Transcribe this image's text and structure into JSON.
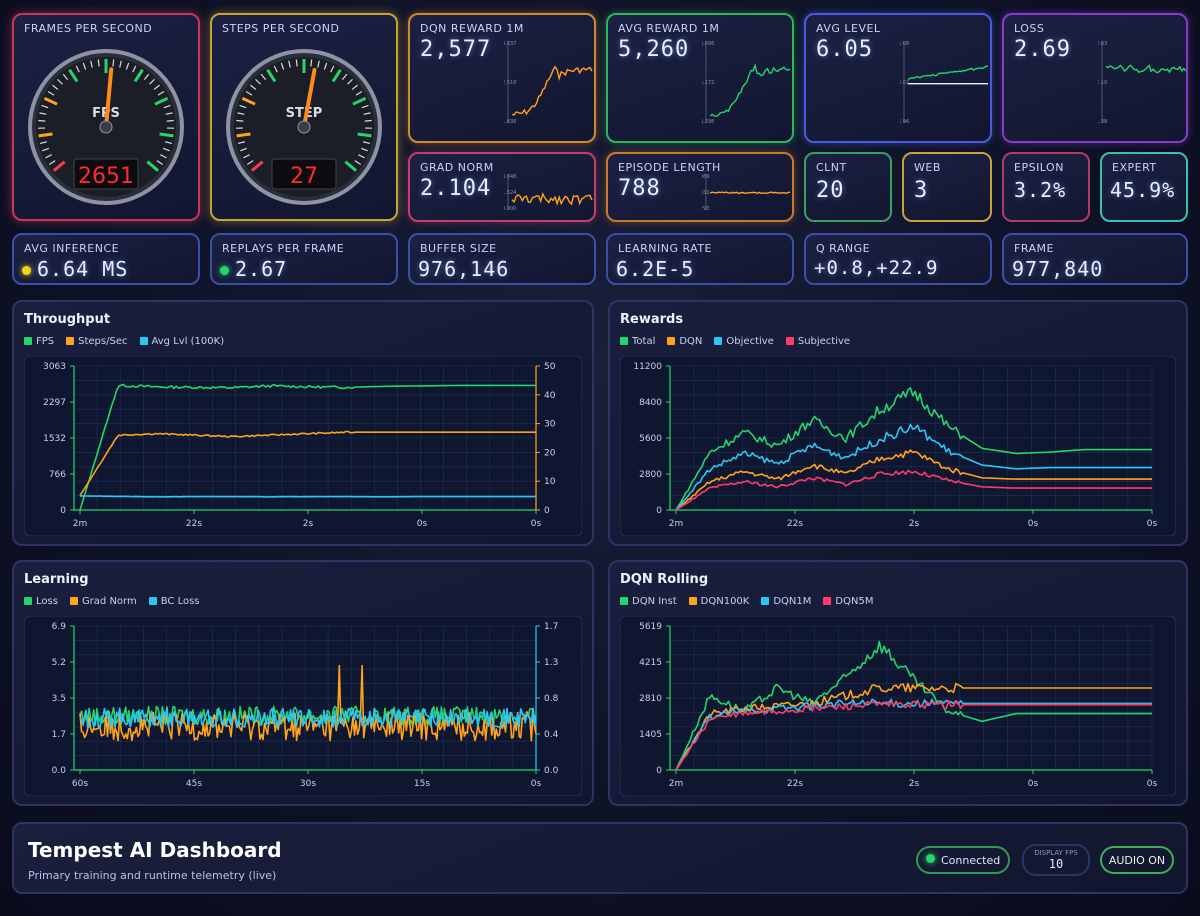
{
  "colors": {
    "green": "#22d66a",
    "orange": "#ffa31a",
    "cyan": "#2cc7f0",
    "red": "#ff3b6a",
    "yellow": "#f5d21a"
  },
  "gauges": [
    {
      "label": "FRAMES PER SECOND",
      "dial_label": "FPS",
      "readout": "2651",
      "needle_fraction": 0.52
    },
    {
      "label": "STEPS PER SECOND",
      "dial_label": "STEP",
      "readout": "27",
      "needle_fraction": 0.54
    }
  ],
  "sparks": [
    {
      "label": "DQN REWARD 1M",
      "value": "2,577",
      "ticks": [
        "3,037",
        "2,518",
        "1,838"
      ],
      "color": "#ffa31a"
    },
    {
      "label": "AVG REWARD 1M",
      "value": "5,260",
      "ticks": [
        "6,096",
        "5,172",
        "4,298"
      ],
      "color": "#22d66a"
    },
    {
      "label": "AVG LEVEL",
      "value": "6.05",
      "ticks": [
        "6.08",
        "6.02",
        "5.96"
      ],
      "color": "#22d66a"
    },
    {
      "label": "LOSS",
      "value": "2.69",
      "ticks": [
        "2.83",
        "2.10",
        "1.38"
      ],
      "color": "#22d66a"
    },
    {
      "label": "GRAD NORM",
      "value": "2.104",
      "ticks": [
        "3.048",
        "1.524",
        "0.000"
      ],
      "color": "#ffa31a"
    },
    {
      "label": "EPISODE LENGTH",
      "value": "788",
      "ticks": [
        "869",
        "831",
        "793"
      ],
      "color": "#ffa31a"
    }
  ],
  "small": [
    {
      "label": "CLNT",
      "value": "20"
    },
    {
      "label": "WEB",
      "value": "3"
    },
    {
      "label": "EPSILON",
      "value": "3.2%"
    },
    {
      "label": "EXPERT",
      "value": "45.9%"
    }
  ],
  "row3": [
    {
      "label": "AVG INFERENCE",
      "value": "6.64 MS",
      "dot": "#f5d21a"
    },
    {
      "label": "REPLAYS PER FRAME",
      "value": "2.67",
      "dot": "#22d66a"
    },
    {
      "label": "BUFFER SIZE",
      "value": "976,146"
    },
    {
      "label": "LEARNING RATE",
      "value": "6.2E-5"
    },
    {
      "label": "Q RANGE",
      "value": "+0.8,+22.9"
    },
    {
      "label": "FRAME",
      "value": "977,840"
    }
  ],
  "chart_data": [
    {
      "title": "Throughput",
      "type": "line",
      "legend": [
        "FPS",
        "Steps/Sec",
        "Avg Lvl (100K)"
      ],
      "y_left_ticks": [
        "3063",
        "2297",
        "1532",
        "766",
        "0"
      ],
      "y_right_ticks": [
        "50",
        "40",
        "30",
        "20",
        "10",
        "0"
      ],
      "x_ticks": [
        "2m",
        "22s",
        "2s",
        "0s",
        "0s"
      ],
      "series": [
        {
          "name": "FPS",
          "axis": "left",
          "values": [
            0,
            2650,
            2620,
            2610,
            2600,
            2640,
            2620,
            2610,
            2630,
            2640,
            2650,
            2650,
            2651
          ]
        },
        {
          "name": "Steps/Sec",
          "axis": "right",
          "values": [
            5,
            26,
            26.5,
            26,
            25.5,
            26,
            26.5,
            27,
            27,
            27,
            27,
            27,
            27
          ]
        },
        {
          "name": "Avg Lvl (100K)",
          "axis": "left",
          "values": [
            300,
            290,
            280,
            285,
            285,
            280,
            285,
            285,
            280,
            285,
            285,
            285,
            285
          ]
        }
      ]
    },
    {
      "title": "Rewards",
      "type": "line",
      "legend": [
        "Total",
        "DQN",
        "Objective",
        "Subjective"
      ],
      "y_ticks": [
        "11200",
        "8400",
        "5600",
        "2800",
        "0"
      ],
      "x_ticks": [
        "2m",
        "22s",
        "2s",
        "0s",
        "0s"
      ],
      "series": [
        {
          "name": "Total",
          "values": [
            0,
            4500,
            6000,
            5000,
            7000,
            5600,
            7800,
            9200,
            6500,
            4800,
            4400,
            4500,
            4700,
            4700,
            4700
          ]
        },
        {
          "name": "DQN",
          "values": [
            0,
            2200,
            3000,
            2400,
            3500,
            2800,
            4000,
            4500,
            3200,
            2500,
            2400,
            2400,
            2400,
            2400,
            2400
          ]
        },
        {
          "name": "Objective",
          "values": [
            0,
            3200,
            4400,
            3600,
            5000,
            4100,
            5500,
            6500,
            4600,
            3500,
            3200,
            3300,
            3300,
            3300,
            3300
          ]
        },
        {
          "name": "Subjective",
          "values": [
            0,
            1700,
            2200,
            1800,
            2500,
            2000,
            2800,
            3000,
            2300,
            1800,
            1700,
            1700,
            1700,
            1700,
            1700
          ]
        }
      ]
    },
    {
      "title": "Learning",
      "type": "line",
      "legend": [
        "Loss",
        "Grad Norm",
        "BC Loss"
      ],
      "y_left_ticks": [
        "6.9",
        "5.2",
        "3.5",
        "1.7",
        "0.0"
      ],
      "y_right_ticks": [
        "1.7",
        "1.3",
        "0.8",
        "0.4",
        "0.0"
      ],
      "x_ticks": [
        "60s",
        "45s",
        "30s",
        "15s",
        "0s"
      ],
      "series": [
        {
          "name": "Loss",
          "axis": "left",
          "base": 2.6
        },
        {
          "name": "Grad Norm",
          "axis": "left",
          "base": 2.1
        },
        {
          "name": "BC Loss",
          "axis": "left",
          "base": 2.5
        }
      ]
    },
    {
      "title": "DQN Rolling",
      "type": "line",
      "legend": [
        "DQN Inst",
        "DQN100K",
        "DQN1M",
        "DQN5M"
      ],
      "y_ticks": [
        "5619",
        "4215",
        "2810",
        "1405",
        "0"
      ],
      "x_ticks": [
        "2m",
        "22s",
        "2s",
        "0s",
        "0s"
      ],
      "series": [
        {
          "name": "DQN Inst",
          "values": [
            0,
            2900,
            2300,
            3200,
            2600,
            3600,
            4900,
            3500,
            2300,
            1900,
            2200,
            2200,
            2200,
            2200,
            2200
          ]
        },
        {
          "name": "DQN100K",
          "values": [
            0,
            2200,
            2400,
            2500,
            2600,
            2900,
            3200,
            3200,
            3200,
            3200,
            3200,
            3200,
            3200,
            3200,
            3200
          ]
        },
        {
          "name": "DQN1M",
          "values": [
            0,
            2100,
            2300,
            2400,
            2500,
            2600,
            2600,
            2600,
            2600,
            2600,
            2600,
            2600,
            2600,
            2600,
            2600
          ]
        },
        {
          "name": "DQN5M",
          "values": [
            0,
            2000,
            2200,
            2300,
            2400,
            2500,
            2550,
            2550,
            2550,
            2550,
            2550,
            2550,
            2550,
            2550,
            2550
          ]
        }
      ]
    }
  ],
  "footer": {
    "title": "Tempest AI Dashboard",
    "subtitle": "Primary training and runtime telemetry (live)",
    "status": "Connected",
    "fps_label": "DISPLAY FPS",
    "fps_value": "10",
    "audio": "AUDIO ON"
  }
}
